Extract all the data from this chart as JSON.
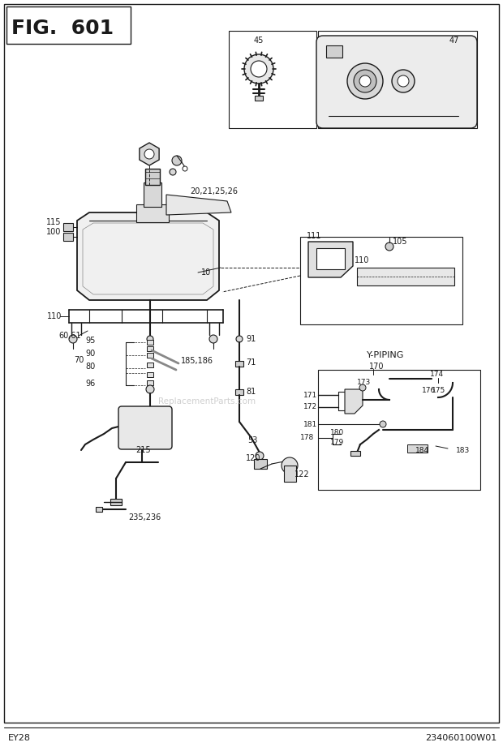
{
  "title": "FIG.  601",
  "footer_left": "EY28",
  "footer_right": "234060100W01",
  "bg_color": "#ffffff",
  "watermark": "ReplacementParts.com",
  "fig_w": 620,
  "fig_h": 926
}
